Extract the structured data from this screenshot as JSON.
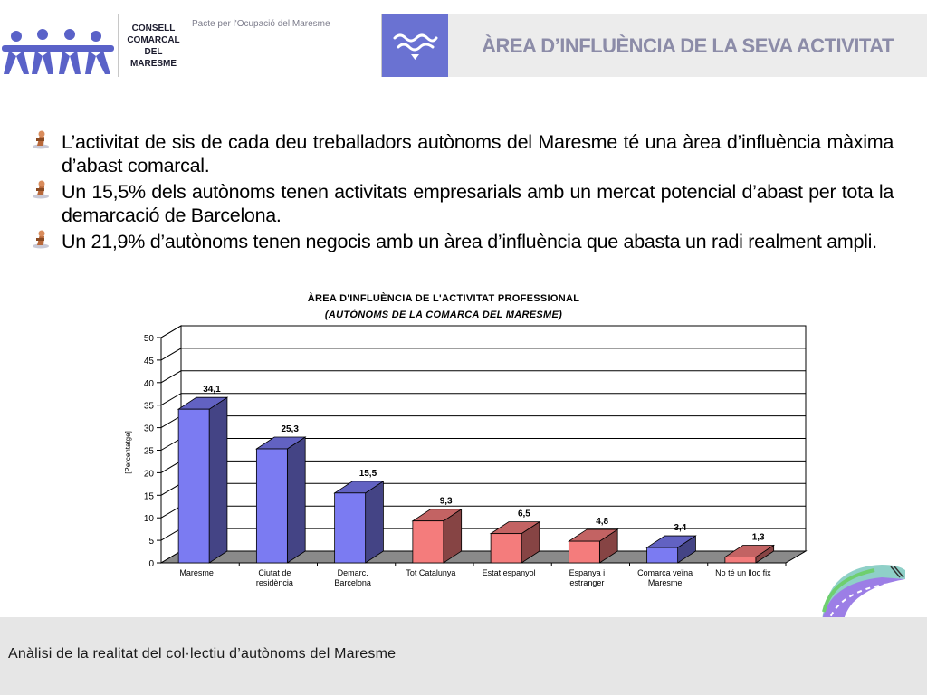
{
  "header": {
    "council_lines": [
      "CONSELL",
      "COMARCAL",
      "DEL",
      "MARESME"
    ],
    "pacte": "Pacte per l'Ocupació del Maresme",
    "title": "ÀREA D’INFLUÈNCIA DE LA SEVA ACTIVITAT"
  },
  "bullets": [
    "L’activitat de sis de cada deu treballadors autònoms del Maresme té una àrea d’influència màxima d’abast comarcal.",
    "Un 15,5% dels autònoms tenen activitats empresarials amb un mercat potencial d’abast per tota la demarcació de Barcelona.",
    "Un 21,9% d’autònoms tenen negocis amb un àrea d’influència que abasta un radi realment ampli."
  ],
  "chart_data": {
    "type": "bar",
    "title": "ÀREA D'INFLUÈNCIA DE L'ACTIVITAT PROFESSIONAL",
    "subtitle": "(AUTÒNOMS DE LA COMARCA DEL MARESME)",
    "ylabel": "[Percentatge]",
    "ylim": [
      0,
      50
    ],
    "yticks": [
      0,
      5,
      10,
      15,
      20,
      25,
      30,
      35,
      40,
      45,
      50
    ],
    "grid": true,
    "categories": [
      [
        "Maresme"
      ],
      [
        "Ciutat de",
        "residència"
      ],
      [
        "Demarc.",
        "Barcelona"
      ],
      [
        "Tot Catalunya"
      ],
      [
        "Estat espanyol"
      ],
      [
        "Espanya i",
        "estranger"
      ],
      [
        "Comarca veïna",
        "Maresme"
      ],
      [
        "No té un lloc fix"
      ]
    ],
    "values": [
      34.1,
      25.3,
      15.5,
      9.3,
      6.5,
      4.8,
      3.4,
      1.3
    ],
    "value_labels": [
      "34,1",
      "25,3",
      "15,5",
      "9,3",
      "6,5",
      "4,8",
      "3,4",
      "1,3"
    ],
    "bar_colors": [
      "#7b7bf2",
      "#7b7bf2",
      "#7b7bf2",
      "#f47c7c",
      "#f47c7c",
      "#f47c7c",
      "#7b7bf2",
      "#f47c7c"
    ]
  },
  "footer": {
    "text": "Anàlisi de la realitat del col·lectiu d’autònoms del Maresme"
  }
}
